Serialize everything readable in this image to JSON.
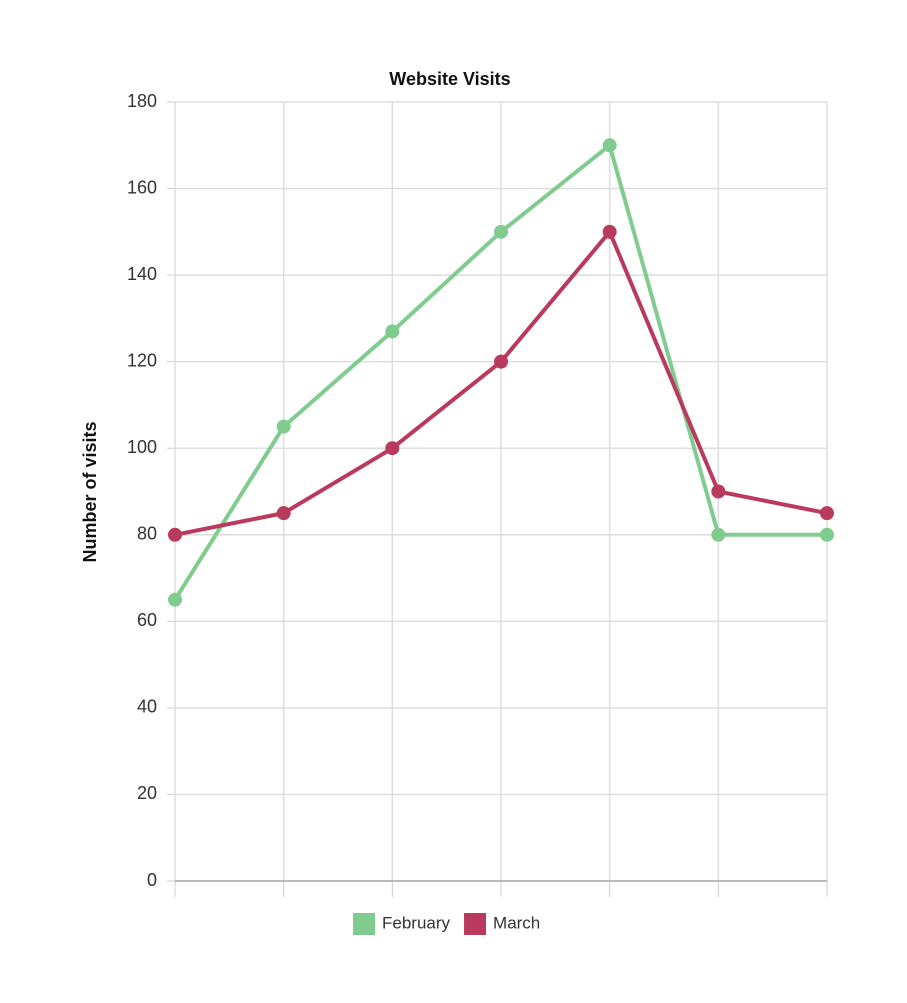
{
  "chart_data": {
    "type": "line",
    "title": "Website Visits",
    "y_label": "Number of visits",
    "categories": [
      null,
      null,
      null,
      null,
      null,
      null,
      null
    ],
    "series": [
      {
        "name": "February",
        "color": "#80cc8f",
        "values": [
          65,
          105,
          127,
          150,
          170,
          80,
          80
        ]
      },
      {
        "name": "March",
        "color": "#b93a5c",
        "values": [
          80,
          85,
          100,
          120,
          150,
          90,
          85
        ]
      }
    ],
    "ylim": [
      0,
      180
    ],
    "yticks": [
      0,
      20,
      40,
      60,
      80,
      100,
      120,
      140,
      160,
      180
    ],
    "grid": true
  }
}
